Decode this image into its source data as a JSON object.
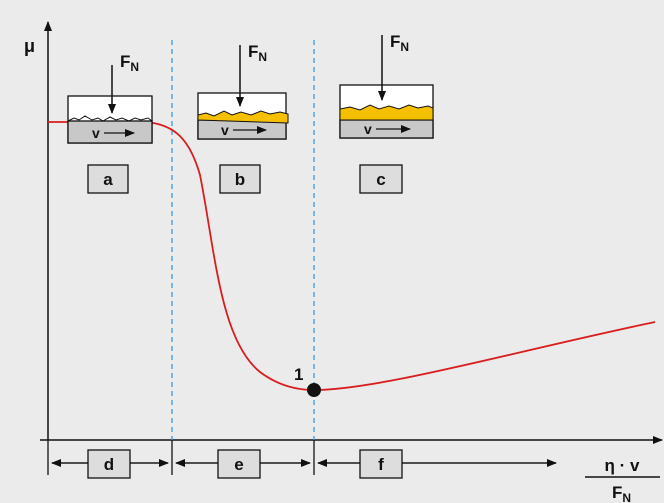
{
  "axes": {
    "y_label": "μ",
    "x_label_numerator": "η · v",
    "x_label_denominator": {
      "symbol": "F",
      "subscript": "N"
    }
  },
  "panels": [
    {
      "label": "a",
      "force": {
        "symbol": "F",
        "subscript": "N"
      },
      "velocity": "v"
    },
    {
      "label": "b",
      "force": {
        "symbol": "F",
        "subscript": "N"
      },
      "velocity": "v"
    },
    {
      "label": "c",
      "force": {
        "symbol": "F",
        "subscript": "N"
      },
      "velocity": "v"
    }
  ],
  "zones": [
    {
      "label": "d"
    },
    {
      "label": "e"
    },
    {
      "label": "f"
    }
  ],
  "point_label": "1"
}
